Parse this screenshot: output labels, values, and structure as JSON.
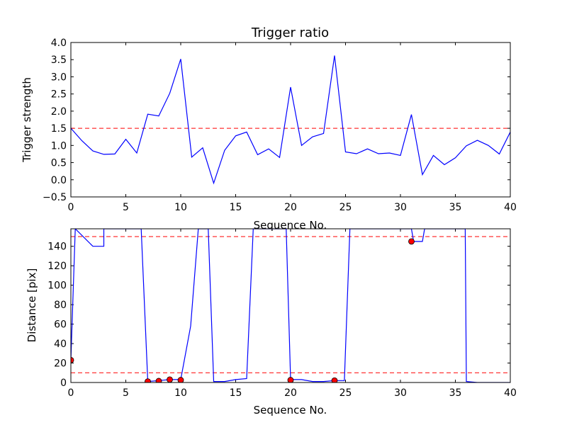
{
  "chart_data": [
    {
      "type": "line",
      "title": "Trigger ratio",
      "xlabel": "Sequence No.",
      "ylabel": "Trigger strength",
      "xlim": [
        0,
        40
      ],
      "ylim": [
        -0.5,
        4.0
      ],
      "xticks": [
        "0",
        "5",
        "10",
        "15",
        "20",
        "25",
        "30",
        "35",
        "40"
      ],
      "yticks": [
        "−0.5",
        "0.0",
        "0.5",
        "1.0",
        "1.5",
        "2.0",
        "2.5",
        "3.0",
        "3.5",
        "4.0"
      ],
      "grid": false,
      "series": [
        {
          "color": "#0000ff",
          "x": [
            0,
            1,
            2,
            3,
            4,
            5,
            6,
            7,
            8,
            9,
            10,
            11,
            12,
            13,
            14,
            15,
            16,
            17,
            18,
            19,
            20,
            21,
            22,
            23,
            24,
            25,
            26,
            27,
            28,
            29,
            30,
            31,
            32,
            33,
            34,
            35,
            36,
            37,
            38,
            39,
            40
          ],
          "y": [
            1.5,
            1.14,
            0.84,
            0.74,
            0.75,
            1.18,
            0.78,
            1.91,
            1.86,
            2.52,
            3.52,
            0.66,
            0.93,
            -0.1,
            0.86,
            1.28,
            1.39,
            0.73,
            0.9,
            0.65,
            2.7,
            1.0,
            1.25,
            1.35,
            3.62,
            0.81,
            0.76,
            0.9,
            0.76,
            0.78,
            0.71,
            1.9,
            0.15,
            0.71,
            0.44,
            0.64,
            0.99,
            1.15,
            1.0,
            0.75,
            1.39
          ]
        }
      ],
      "hlines": [
        {
          "y": 1.5,
          "color": "#ff0000",
          "style": "dashed"
        }
      ]
    },
    {
      "type": "line",
      "xlabel": "Sequence No.",
      "ylabel": "Distance [pix]",
      "xlim": [
        0,
        40
      ],
      "ylim": [
        0,
        158
      ],
      "xticks": [
        "0",
        "5",
        "10",
        "15",
        "20",
        "25",
        "30",
        "35",
        "40"
      ],
      "yticks": [
        "0",
        "20",
        "40",
        "60",
        "80",
        "100",
        "120",
        "140"
      ],
      "grid": false,
      "series": [
        {
          "color": "#0000ff",
          "x": [
            0,
            0.4,
            2,
            3,
            3,
            6,
            6.4,
            7,
            8,
            9,
            10,
            10.9,
            11.6,
            12.5,
            13,
            14,
            15,
            16,
            16.6,
            19,
            19.6,
            20,
            21,
            22,
            23,
            24,
            24.9,
            25.4,
            31,
            31.2,
            32,
            32.2,
            35.4,
            35.9,
            36,
            37,
            38,
            39,
            40
          ],
          "y": [
            23,
            158,
            140,
            140,
            158,
            158,
            158,
            1,
            2,
            3,
            3,
            58,
            158,
            158,
            1,
            1,
            3,
            4,
            158,
            158,
            158,
            3,
            3,
            1,
            1,
            2,
            2,
            158,
            158,
            145,
            145,
            158,
            158,
            158,
            1,
            0,
            0,
            0,
            0
          ]
        },
        {
          "name": "markers",
          "color": "#ff0000",
          "marker": "circle",
          "x": [
            0,
            7,
            8,
            9,
            10,
            20,
            24,
            31
          ],
          "y": [
            23,
            1,
            1.5,
            3,
            2.5,
            2.5,
            2,
            145
          ]
        }
      ],
      "hlines": [
        {
          "y": 150,
          "color": "#ff0000",
          "style": "dashed"
        },
        {
          "y": 10,
          "color": "#ff0000",
          "style": "dashed"
        }
      ]
    }
  ]
}
